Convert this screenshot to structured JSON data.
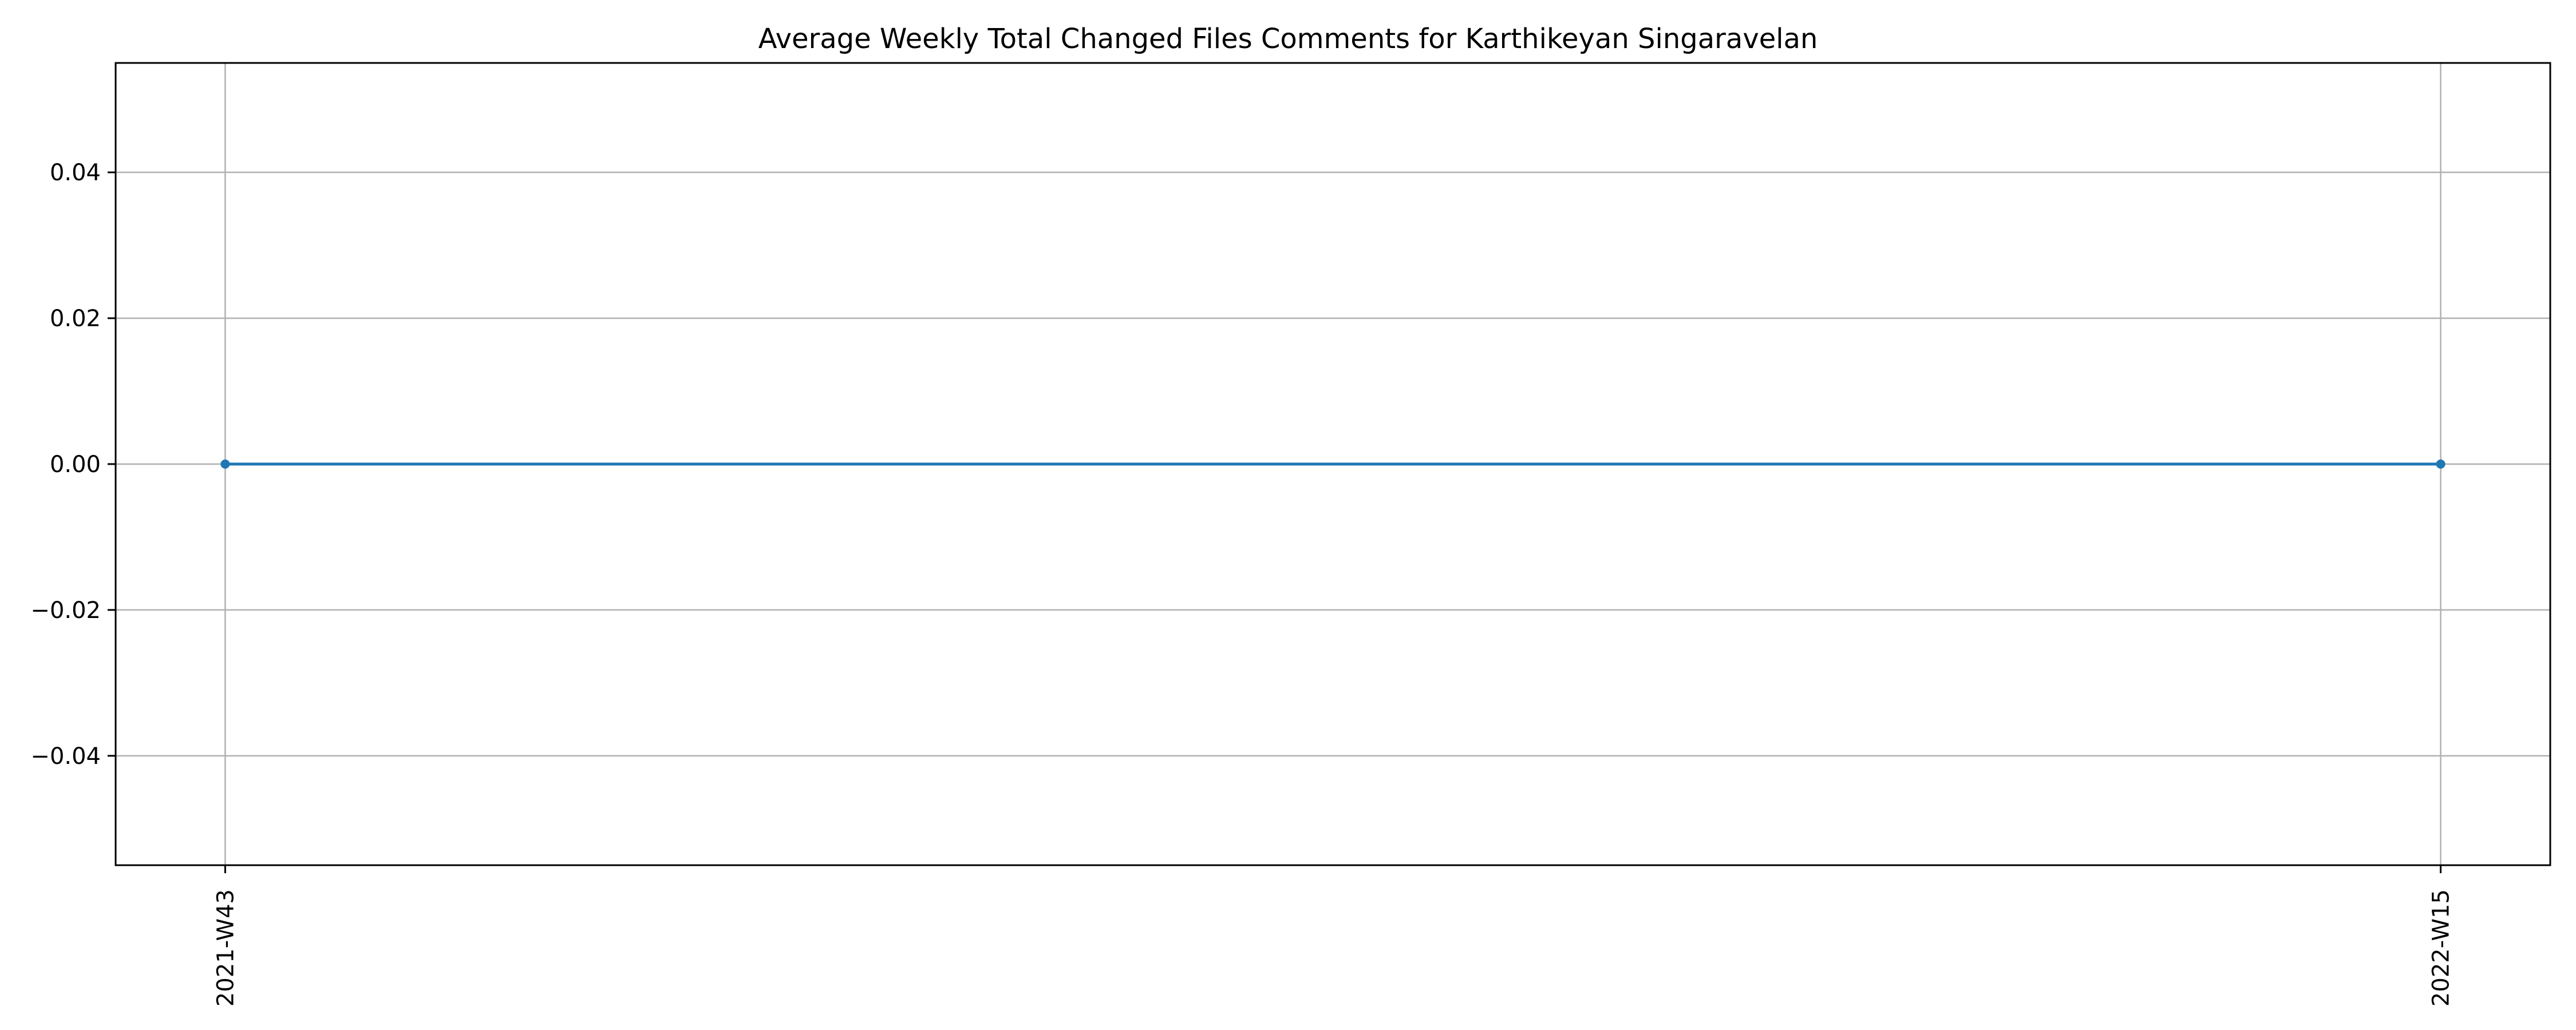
{
  "chart_data": {
    "type": "line",
    "title": "Average Weekly Total Changed Files Comments for Karthikeyan Singaravelan",
    "xlabel": "",
    "ylabel": "",
    "x": [
      "2021-W43",
      "2022-W15"
    ],
    "series": [
      {
        "values": [
          0.0,
          0.0
        ],
        "color": "#1f77b4",
        "marker": "circle"
      }
    ],
    "ylim": [
      -0.055,
      0.055
    ],
    "yticks": [
      -0.04,
      -0.02,
      0.0,
      0.02,
      0.04
    ],
    "ytick_labels": [
      "−0.04",
      "−0.02",
      "0.00",
      "0.02",
      "0.04"
    ],
    "grid": true,
    "legend": "none"
  }
}
